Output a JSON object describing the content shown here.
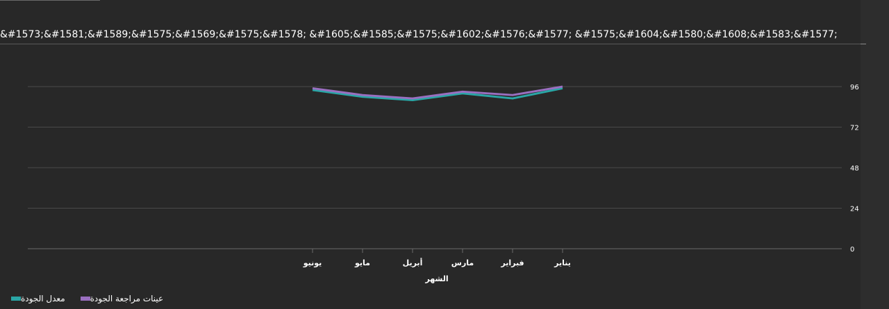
{
  "chart_data": {
    "type": "line",
    "title": "&#1573;&#1581;&#1589;&#1575;&#1569;&#1575;&#1578; &#1605;&#1585;&#1575;&#1602;&#1576;&#1577; &#1575;&#1604;&#1580;&#1608;&#1583;&#1577;",
    "xlabel": "الشهر",
    "ylabel": "",
    "categories": [
      "يناير",
      "فبراير",
      "مارس",
      "أبريل",
      "مايو",
      "يونيو"
    ],
    "y_ticks": [
      0,
      24,
      48,
      72,
      96
    ],
    "ylim": [
      0,
      96
    ],
    "grid": true,
    "legend_position": "bottom-left",
    "series": [
      {
        "name": "معدل الجودة",
        "color": "#2aa6a6",
        "values": [
          95,
          89,
          92,
          88,
          90,
          94
        ]
      },
      {
        "name": "عينات مراجعة الجودة",
        "color": "#9a6fc0",
        "values": [
          96,
          91,
          93,
          89,
          91,
          95
        ]
      }
    ]
  }
}
